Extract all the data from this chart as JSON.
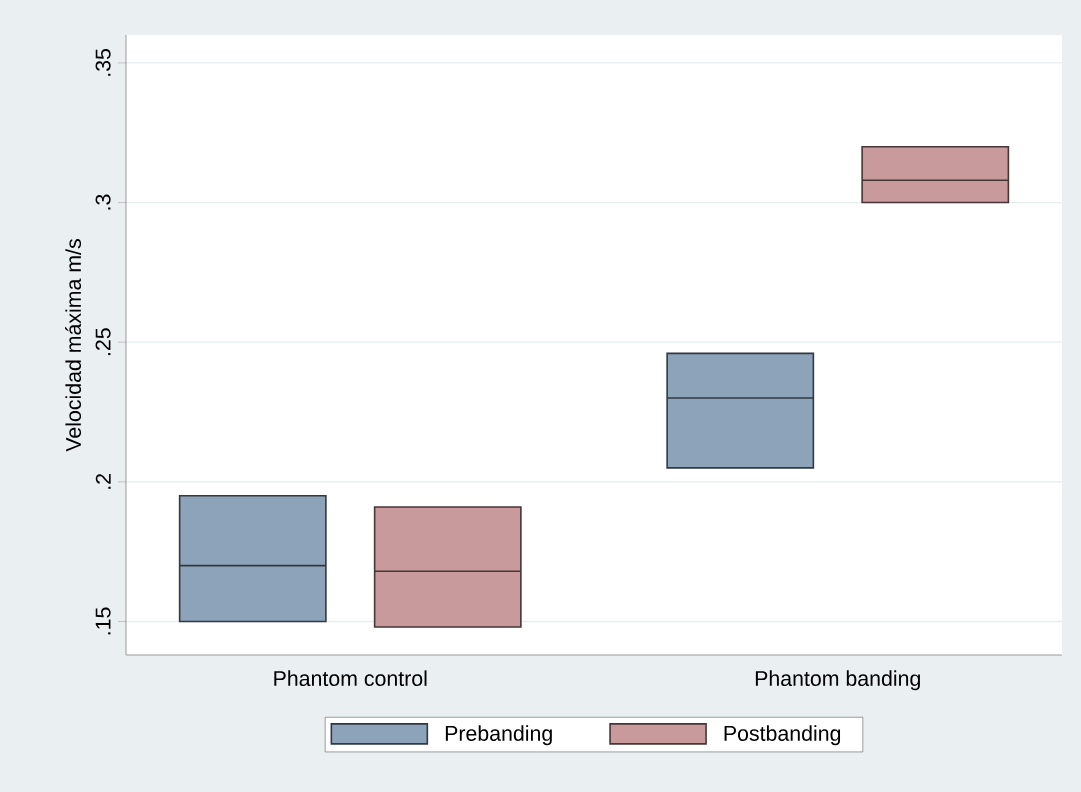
{
  "chart_data": {
    "type": "box",
    "ylabel": "Velocidad máxima m/s",
    "categories": [
      "Phantom control",
      "Phantom banding"
    ],
    "series": [
      {
        "name": "Prebanding",
        "color": "#8ca3b9",
        "boxes": [
          {
            "low": 0.15,
            "q1": 0.15,
            "median": 0.17,
            "q3": 0.195,
            "high": 0.195
          },
          {
            "low": 0.205,
            "q1": 0.205,
            "median": 0.23,
            "q3": 0.246,
            "high": 0.246
          }
        ]
      },
      {
        "name": "Postbanding",
        "color": "#c99a9c",
        "boxes": [
          {
            "low": 0.148,
            "q1": 0.148,
            "median": 0.168,
            "q3": 0.191,
            "high": 0.191
          },
          {
            "low": 0.3,
            "q1": 0.3,
            "median": 0.308,
            "q3": 0.32,
            "high": 0.32
          }
        ]
      }
    ],
    "ylim": [
      0.138,
      0.36
    ],
    "yticks": [
      {
        "value": 0.15,
        "label": ".15"
      },
      {
        "value": 0.2,
        "label": ".2"
      },
      {
        "value": 0.25,
        "label": ".25"
      },
      {
        "value": 0.3,
        "label": ".3"
      },
      {
        "value": 0.35,
        "label": ".35"
      }
    ],
    "grid": "y",
    "legend": "bottom"
  }
}
